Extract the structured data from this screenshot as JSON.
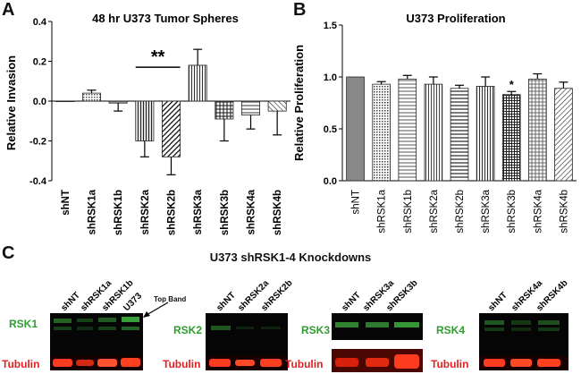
{
  "panels": {
    "a": "A",
    "b": "B",
    "c": "C"
  },
  "chart_data": [
    {
      "type": "bar",
      "title": "48 hr U373 Tumor  Spheres",
      "ylabel": "Relative Invasion",
      "xlabel": "",
      "categories": [
        "shNT",
        "shRSK1a",
        "shRSK1b",
        "shRSK2a",
        "shRSK2b",
        "shRSK3a",
        "shRSK3b",
        "shRSK4a",
        "shRSK4b"
      ],
      "values": [
        0.0,
        0.04,
        -0.01,
        -0.2,
        -0.28,
        0.18,
        -0.09,
        -0.07,
        -0.05
      ],
      "errors": [
        0.0,
        0.015,
        0.04,
        0.08,
        0.09,
        0.08,
        0.11,
        0.07,
        0.12
      ],
      "ylim": [
        -0.4,
        0.4
      ],
      "yticks": [
        -0.4,
        -0.2,
        0.0,
        0.2,
        0.4
      ],
      "ytick_labels": [
        "-0.4",
        "-0.2",
        "0.0",
        "0.2",
        "0.4"
      ],
      "significance": "**",
      "significance_pair": [
        "shRSK2a",
        "shRSK2b"
      ]
    },
    {
      "type": "bar",
      "title": "U373 Proliferation",
      "ylabel": "Relative Proliferation",
      "xlabel": "",
      "categories": [
        "shNT",
        "shRSK1a",
        "shRSK1b",
        "shRSK2a",
        "shRSK2b",
        "shRSK3a",
        "shRSK3b",
        "shRSK4a",
        "shRSK4b"
      ],
      "values": [
        1.0,
        0.93,
        0.98,
        0.93,
        0.89,
        0.91,
        0.83,
        0.98,
        0.89
      ],
      "errors": [
        0.0,
        0.025,
        0.035,
        0.07,
        0.03,
        0.09,
        0.03,
        0.05,
        0.06
      ],
      "ylim": [
        0.0,
        1.5
      ],
      "yticks": [
        0.0,
        0.5,
        1.0,
        1.5
      ],
      "ytick_labels": [
        "0.0",
        "0.5",
        "1.0",
        "1.5"
      ],
      "significance": "*",
      "significance_on": "shRSK3b"
    }
  ],
  "blots": {
    "title": "U373 shRSK1-4 Knockdowns",
    "top_band_note": "Top Band",
    "loading_label": "Tubulin",
    "groups": [
      {
        "target": "RSK1",
        "lanes": [
          "shNT",
          "shRSK1a",
          "shRSK1b",
          "U373"
        ]
      },
      {
        "target": "RSK2",
        "lanes": [
          "shNT",
          "shRSK2a",
          "shRSK2b"
        ]
      },
      {
        "target": "RSK3",
        "lanes": [
          "shNT",
          "shRSK3a",
          "shRSK3b"
        ]
      },
      {
        "target": "RSK4",
        "lanes": [
          "shNT",
          "shRSK4a",
          "shRSK4b"
        ]
      }
    ]
  },
  "colors": {
    "target_label": "#2e9c2e",
    "tubulin_label": "#e02020",
    "band_green": "#3fb03f",
    "band_red": "#ff3b1f"
  }
}
